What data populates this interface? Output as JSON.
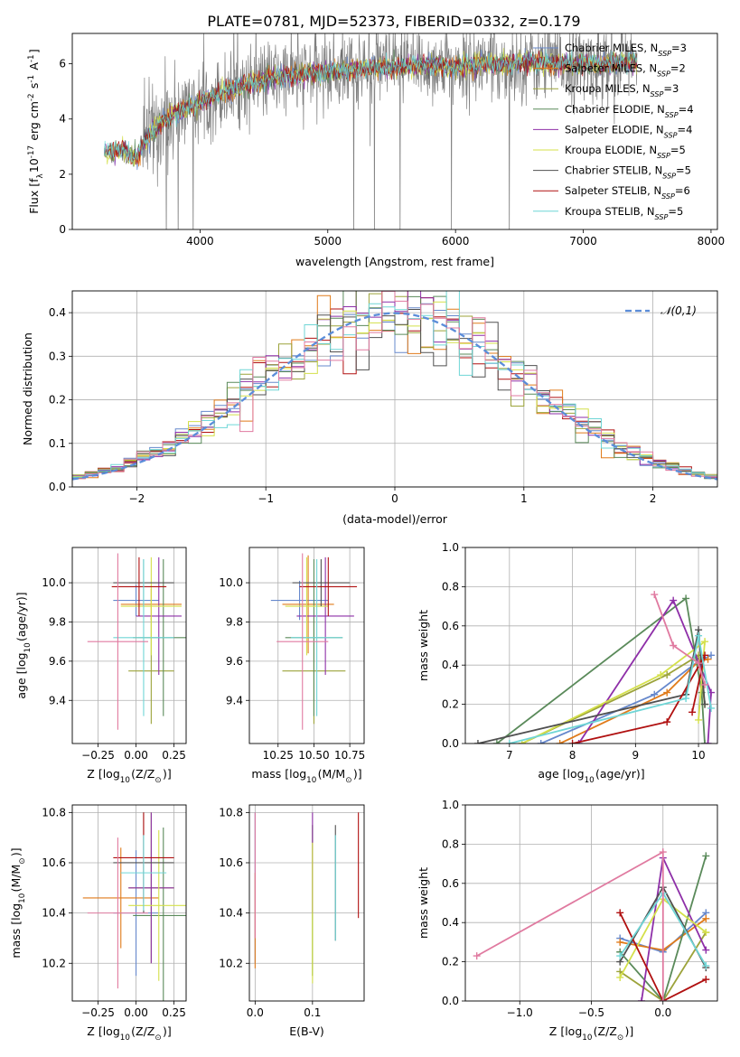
{
  "title": "PLATE=0781, MJD=52373, FIBERID=0332, z=0.179",
  "colors": {
    "data": "#808080",
    "series": [
      "#6688cc",
      "#e07b1a",
      "#9ca33a",
      "#5a8a5a",
      "#8e2fa8",
      "#d4e04a",
      "#505050",
      "#b01010",
      "#6fd6d6",
      "#e07aa0"
    ]
  },
  "chart_data": [
    {
      "id": "spectrum",
      "type": "line",
      "xlabel": "wavelength [Angstrom, rest frame]",
      "ylabel": "Flux [f$_\\lambda$10$^{-17}$ erg cm$^{-2}$ s$^{-1}$ A$^{-1}$]",
      "xlim": [
        3000,
        8050
      ],
      "ylim": [
        0,
        7.1
      ],
      "xticks": [
        "4000",
        "5000",
        "6000",
        "7000",
        "8000"
      ],
      "yticks": [
        "0",
        "2",
        "4",
        "6"
      ],
      "legend_position": "right",
      "legend": [
        {
          "text": "Chabrier MILES, N_SSP=3",
          "color": "#6688cc"
        },
        {
          "text": "Salpeter MILES, N_SSP=2",
          "color": "#e07b1a"
        },
        {
          "text": "Kroupa MILES, N_SSP=3",
          "color": "#9ca33a"
        },
        {
          "text": "Chabrier ELODIE, N_SSP=4",
          "color": "#5a8a5a"
        },
        {
          "text": "Salpeter ELODIE, N_SSP=4",
          "color": "#8e2fa8"
        },
        {
          "text": "Kroupa ELODIE, N_SSP=5",
          "color": "#d4e04a"
        },
        {
          "text": "Chabrier STELIB, N_SSP=5",
          "color": "#505050"
        },
        {
          "text": "Salpeter STELIB, N_SSP=6",
          "color": "#b01010"
        },
        {
          "text": "Kroupa STELIB, N_SSP=5",
          "color": "#6fd6d6"
        }
      ],
      "continuum": {
        "x": [
          3250,
          3400,
          3500,
          3600,
          3700,
          3800,
          3900,
          4000,
          4200,
          4400,
          4600,
          4800,
          5000,
          5200,
          5400,
          5600,
          5800,
          6000,
          6200,
          6400,
          6600,
          6800,
          7000,
          7200,
          7400
        ],
        "y": [
          2.8,
          2.9,
          2.6,
          3.4,
          3.9,
          4.2,
          4.4,
          4.6,
          5.0,
          5.3,
          5.5,
          5.6,
          5.7,
          5.8,
          5.85,
          5.9,
          5.95,
          5.9,
          6.0,
          6.0,
          6.05,
          6.0,
          6.0,
          6.0,
          6.05
        ]
      }
    },
    {
      "id": "residuals",
      "type": "histogram",
      "xlabel": "(data-model)/error",
      "ylabel": "Normed distribution",
      "xlim": [
        -2.5,
        2.5
      ],
      "ylim": [
        0,
        0.45
      ],
      "xticks": [
        "-2",
        "-1",
        "0",
        "1",
        "2"
      ],
      "yticks": [
        "0.0",
        "0.1",
        "0.2",
        "0.3",
        "0.4"
      ],
      "legend": "$\\mathcal{N}(0,1)$",
      "legend_position": "top-right",
      "reference": {
        "type": "gaussian",
        "mean": 0,
        "sigma": 1
      }
    },
    {
      "id": "age_vs_Z",
      "type": "errorbar",
      "xlabel": "Z [log$_{10}$(Z/Z$_\\odot$)]",
      "ylabel": "age  [log$_{10}$(age/yr)]",
      "xlim": [
        -0.42,
        0.33
      ],
      "ylim": [
        9.18,
        10.18
      ],
      "xticks": [
        "-0.25",
        "0.00",
        "0.25"
      ],
      "yticks": [
        "9.4",
        "9.6",
        "9.8",
        "10.0"
      ],
      "points": [
        {
          "x": 0.0,
          "xerr": 0.15,
          "y": 9.91,
          "yerr": 0.08,
          "c": 0
        },
        {
          "x": 0.1,
          "xerr": 0.2,
          "y": 9.89,
          "yerr": 0.08,
          "c": 1
        },
        {
          "x": 0.1,
          "xerr": 0.15,
          "y": 9.55,
          "yerr": 0.27,
          "c": 2
        },
        {
          "x": 0.18,
          "xerr": 0.2,
          "y": 9.72,
          "yerr": 0.4,
          "c": 3
        },
        {
          "x": 0.15,
          "xerr": 0.15,
          "y": 9.83,
          "yerr": 0.3,
          "c": 4
        },
        {
          "x": 0.1,
          "xerr": 0.2,
          "y": 9.88,
          "yerr": 0.25,
          "c": 5
        },
        {
          "x": 0.05,
          "xerr": 0.2,
          "y": 10.0,
          "yerr": 0.12,
          "c": 6
        },
        {
          "x": 0.02,
          "xerr": 0.18,
          "y": 9.98,
          "yerr": 0.15,
          "c": 7
        },
        {
          "x": 0.05,
          "xerr": 0.2,
          "y": 9.72,
          "yerr": 0.4,
          "c": 8
        },
        {
          "x": -0.12,
          "xerr": 0.2,
          "y": 9.7,
          "yerr": 0.45,
          "c": 9
        }
      ]
    },
    {
      "id": "age_vs_mass",
      "type": "errorbar",
      "xlabel": "mass [log$_{10}$(M/M$_\\odot$)]",
      "ylabel": "",
      "xlim": [
        10.05,
        10.85
      ],
      "ylim": [
        9.18,
        10.18
      ],
      "xticks": [
        "10.25",
        "10.50",
        "10.75"
      ],
      "yticks": [
        "9.4",
        "9.6",
        "9.8",
        "10.0"
      ],
      "points": [
        {
          "x": 10.4,
          "xerr": 0.2,
          "y": 9.91,
          "yerr": 0.1,
          "c": 0
        },
        {
          "x": 10.46,
          "xerr": 0.18,
          "y": 9.89,
          "yerr": 0.25,
          "c": 1
        },
        {
          "x": 10.5,
          "xerr": 0.22,
          "y": 9.55,
          "yerr": 0.27,
          "c": 2
        },
        {
          "x": 10.5,
          "xerr": 0.2,
          "y": 9.72,
          "yerr": 0.4,
          "c": 3
        },
        {
          "x": 10.58,
          "xerr": 0.2,
          "y": 9.83,
          "yerr": 0.3,
          "c": 4
        },
        {
          "x": 10.45,
          "xerr": 0.15,
          "y": 9.88,
          "yerr": 0.25,
          "c": 5
        },
        {
          "x": 10.55,
          "xerr": 0.2,
          "y": 10.0,
          "yerr": 0.12,
          "c": 6
        },
        {
          "x": 10.6,
          "xerr": 0.2,
          "y": 9.98,
          "yerr": 0.15,
          "c": 7
        },
        {
          "x": 10.52,
          "xerr": 0.18,
          "y": 9.72,
          "yerr": 0.4,
          "c": 8
        },
        {
          "x": 10.42,
          "xerr": 0.18,
          "y": 9.7,
          "yerr": 0.45,
          "c": 9
        }
      ]
    },
    {
      "id": "massweight_vs_age",
      "type": "line",
      "xlabel": "age  [log$_{10}$(age/yr)]",
      "ylabel": "mass weight",
      "xlim": [
        6.3,
        10.3
      ],
      "ylim": [
        0,
        1.0
      ],
      "xticks": [
        "7",
        "8",
        "9",
        "10"
      ],
      "yticks": [
        "0.0",
        "0.2",
        "0.4",
        "0.6",
        "0.8",
        "1.0"
      ],
      "series": [
        {
          "c": 0,
          "x": [
            7.5,
            9.3,
            10.0,
            10.2
          ],
          "y": [
            0.0,
            0.25,
            0.42,
            0.45
          ]
        },
        {
          "c": 1,
          "x": [
            7.8,
            9.5,
            10.0,
            10.15
          ],
          "y": [
            0.0,
            0.26,
            0.42,
            0.43
          ]
        },
        {
          "c": 2,
          "x": [
            7.2,
            9.5,
            10.0,
            10.1
          ],
          "y": [
            0.0,
            0.35,
            0.45,
            0.2
          ]
        },
        {
          "c": 3,
          "x": [
            6.8,
            9.8,
            10.05,
            10.1
          ],
          "y": [
            0.0,
            0.74,
            0.26,
            0.0
          ]
        },
        {
          "c": 4,
          "x": [
            8.1,
            9.6,
            10.2,
            10.15
          ],
          "y": [
            0.0,
            0.73,
            0.26,
            0.0
          ]
        },
        {
          "c": 5,
          "x": [
            7.2,
            9.4,
            10.1,
            10.0
          ],
          "y": [
            0.0,
            0.35,
            0.52,
            0.12
          ]
        },
        {
          "c": 6,
          "x": [
            6.5,
            9.8,
            10.0,
            10.1
          ],
          "y": [
            0.0,
            0.25,
            0.58,
            0.2
          ]
        },
        {
          "c": 7,
          "x": [
            8.0,
            9.5,
            10.1,
            9.9
          ],
          "y": [
            0.0,
            0.11,
            0.45,
            0.16
          ]
        },
        {
          "c": 8,
          "x": [
            7.0,
            9.8,
            10.0,
            10.2
          ],
          "y": [
            0.0,
            0.23,
            0.55,
            0.18
          ]
        },
        {
          "c": 9,
          "x": [
            9.3,
            9.6,
            10.0,
            10.1
          ],
          "y": [
            0.76,
            0.5,
            0.41,
            0.3
          ]
        }
      ]
    },
    {
      "id": "mass_vs_Z",
      "type": "errorbar",
      "xlabel": "Z [log$_{10}$(Z/Z$_\\odot$)]",
      "ylabel": "mass [log$_{10}$(M/M$_\\odot$)]",
      "xlim": [
        -0.42,
        0.33
      ],
      "ylim": [
        10.05,
        10.83
      ],
      "xticks": [
        "-0.25",
        "0.00",
        "0.25"
      ],
      "yticks": [
        "10.2",
        "10.4",
        "10.6",
        "10.8"
      ],
      "points": [
        {
          "x": 0.0,
          "xerr": 0.15,
          "y": 10.4,
          "yerr": 0.25,
          "c": 0
        },
        {
          "x": -0.1,
          "xerr": 0.25,
          "y": 10.46,
          "yerr": 0.2,
          "c": 1
        },
        {
          "x": 0.1,
          "xerr": 0.15,
          "y": 10.5,
          "yerr": 0.3,
          "c": 2
        },
        {
          "x": 0.18,
          "xerr": 0.2,
          "y": 10.39,
          "yerr": 0.35,
          "c": 3
        },
        {
          "x": 0.1,
          "xerr": 0.15,
          "y": 10.5,
          "yerr": 0.3,
          "c": 4
        },
        {
          "x": 0.15,
          "xerr": 0.2,
          "y": 10.43,
          "yerr": 0.3,
          "c": 5
        },
        {
          "x": 0.05,
          "xerr": 0.2,
          "y": 10.6,
          "yerr": 0.2,
          "c": 6
        },
        {
          "x": 0.05,
          "xerr": 0.2,
          "y": 10.62,
          "yerr": 0.18,
          "c": 7
        },
        {
          "x": 0.05,
          "xerr": 0.15,
          "y": 10.56,
          "yerr": 0.15,
          "c": 8
        },
        {
          "x": -0.12,
          "xerr": 0.2,
          "y": 10.4,
          "yerr": 0.3,
          "c": 9
        }
      ]
    },
    {
      "id": "mass_vs_EBV",
      "type": "errorbar",
      "xlabel": "E(B-V)",
      "ylabel": "",
      "xlim": [
        -0.01,
        0.19
      ],
      "ylim": [
        10.05,
        10.83
      ],
      "xticks": [
        "0.0",
        "0.1"
      ],
      "yticks": [
        "10.2",
        "10.4",
        "10.6",
        "10.8"
      ],
      "points": [
        {
          "x": 0.0,
          "y": 10.5,
          "yerr": 0.3,
          "c": 0
        },
        {
          "x": 0.0,
          "y": 10.37,
          "yerr": 0.19,
          "c": 1
        },
        {
          "x": 0.1,
          "y": 10.45,
          "yerr": 0.3,
          "c": 2
        },
        {
          "x": 0.1,
          "y": 10.45,
          "yerr": 0.3,
          "c": 3
        },
        {
          "x": 0.1,
          "y": 10.6,
          "yerr": 0.2,
          "c": 4
        },
        {
          "x": 0.1,
          "y": 10.4,
          "yerr": 0.28,
          "c": 5
        },
        {
          "x": 0.14,
          "y": 10.52,
          "yerr": 0.23,
          "c": 6
        },
        {
          "x": 0.18,
          "y": 10.59,
          "yerr": 0.21,
          "c": 7
        },
        {
          "x": 0.14,
          "y": 10.5,
          "yerr": 0.21,
          "c": 8
        },
        {
          "x": 0.0,
          "y": 10.55,
          "yerr": 0.25,
          "c": 9
        }
      ]
    },
    {
      "id": "massweight_vs_Z",
      "type": "line",
      "xlabel": "Z [log$_{10}$(Z/Z$_\\odot$)]",
      "ylabel": "mass weight",
      "xlim": [
        -1.38,
        0.38
      ],
      "ylim": [
        0,
        1.0
      ],
      "xticks": [
        "-1.0",
        "-0.5",
        "0.0"
      ],
      "yticks": [
        "0.0",
        "0.2",
        "0.4",
        "0.6",
        "0.8",
        "1.0"
      ],
      "series": [
        {
          "c": 0,
          "x": [
            -0.3,
            0.0,
            0.3
          ],
          "y": [
            0.32,
            0.25,
            0.45
          ]
        },
        {
          "c": 1,
          "x": [
            -0.3,
            0.0,
            0.3
          ],
          "y": [
            0.3,
            0.26,
            0.42
          ]
        },
        {
          "c": 2,
          "x": [
            -0.3,
            0.0,
            0.3
          ],
          "y": [
            0.15,
            0.0,
            0.35
          ]
        },
        {
          "c": 3,
          "x": [
            -0.3,
            0.0,
            0.3
          ],
          "y": [
            0.25,
            0.0,
            0.74
          ]
        },
        {
          "c": 4,
          "x": [
            -0.15,
            0.0,
            0.3
          ],
          "y": [
            0.0,
            0.73,
            0.26
          ]
        },
        {
          "c": 5,
          "x": [
            -0.3,
            0.0,
            0.3
          ],
          "y": [
            0.12,
            0.52,
            0.35
          ]
        },
        {
          "c": 6,
          "x": [
            -0.3,
            0.0,
            0.3
          ],
          "y": [
            0.2,
            0.58,
            0.17
          ]
        },
        {
          "c": 7,
          "x": [
            -0.3,
            0.0,
            0.3
          ],
          "y": [
            0.45,
            0.0,
            0.11
          ]
        },
        {
          "c": 8,
          "x": [
            -0.3,
            0.0,
            0.3
          ],
          "y": [
            0.23,
            0.55,
            0.18
          ]
        },
        {
          "c": 9,
          "x": [
            -1.3,
            0.0,
            0.0
          ],
          "y": [
            0.23,
            0.76,
            0.0
          ]
        }
      ]
    }
  ]
}
